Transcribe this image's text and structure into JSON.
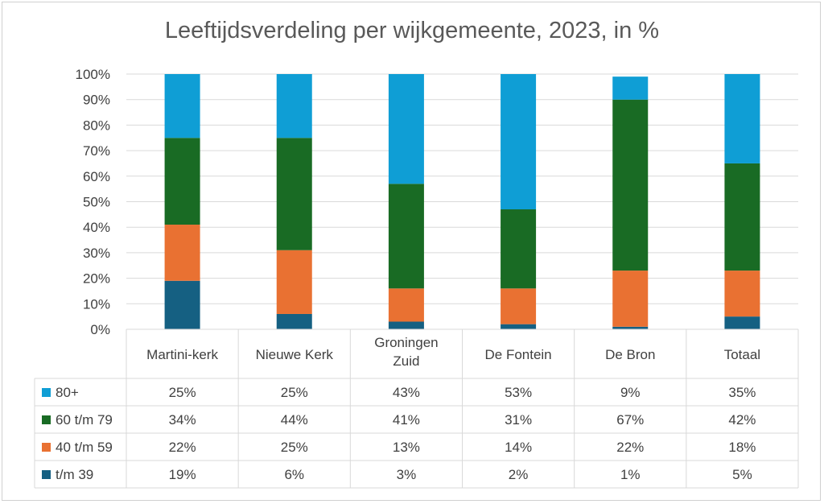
{
  "chart_data": {
    "type": "bar",
    "stacked": "100%",
    "title": "Leeftijdsverdeling per wijkgemeente, 2023, in %",
    "categories": [
      "Martini-kerk",
      "Nieuwe Kerk",
      "Groningen\nZuid",
      "De Fontein",
      "De Bron",
      "Totaal"
    ],
    "series": [
      {
        "name": "t/m 39",
        "color": "#156082",
        "values": [
          19,
          6,
          3,
          2,
          1,
          5
        ]
      },
      {
        "name": "40 t/m 59",
        "color": "#E97132",
        "values": [
          22,
          25,
          13,
          14,
          22,
          18
        ]
      },
      {
        "name": "60 t/m 79",
        "color": "#196B24",
        "values": [
          34,
          44,
          41,
          31,
          67,
          42
        ]
      },
      {
        "name": "80+",
        "color": "#0F9ED5",
        "values": [
          25,
          25,
          43,
          53,
          9,
          35
        ]
      }
    ],
    "table_order": [
      3,
      2,
      1,
      0
    ],
    "ylim": [
      0,
      100
    ],
    "yticks": [
      "0%",
      "10%",
      "20%",
      "30%",
      "40%",
      "50%",
      "60%",
      "70%",
      "80%",
      "90%",
      "100%"
    ],
    "data_table": true,
    "grid": true,
    "xlabel": "",
    "ylabel": ""
  }
}
